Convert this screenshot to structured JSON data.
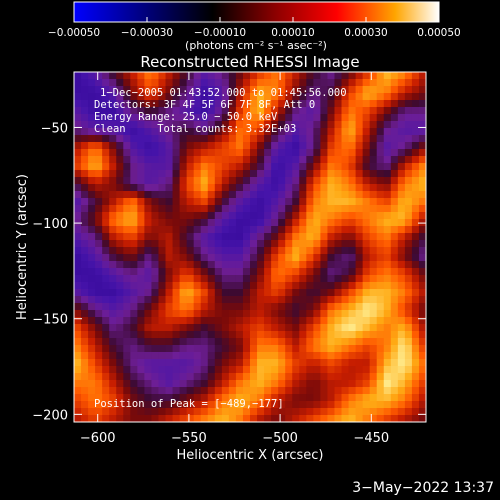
{
  "chart_data": {
    "type": "heatmap",
    "title": "Reconstructed RHESSI Image",
    "xlabel": "Heliocentric X (arcsec)",
    "ylabel": "Heliocentric Y (arcsec)",
    "xlim": [
      -613,
      -420
    ],
    "ylim": [
      -204,
      -21
    ],
    "xticks": [
      -600,
      -550,
      -500,
      -450
    ],
    "yticks": [
      -50,
      -100,
      -150,
      -200
    ],
    "xtick_labels": [
      "−600",
      "−550",
      "−500",
      "−450"
    ],
    "ytick_labels": [
      "−50",
      "−100",
      "−150",
      "−200"
    ],
    "colorbar": {
      "range": [
        -0.0005,
        0.0005
      ],
      "ticks": [
        -0.0005,
        -0.0003,
        -0.0001,
        0.0001,
        0.0003,
        0.0005
      ],
      "tick_labels": [
        "−0.00050",
        "−0.00030",
        "−0.00010",
        "0.00010",
        "0.00030",
        "0.00050"
      ],
      "unit_label": "(photons cm⁻² s⁻¹ asec⁻²)",
      "colors": [
        "#0000ff",
        "#000000",
        "#8b0000",
        "#ff0000",
        "#ffa500",
        "#ffffff"
      ]
    },
    "annotations": [
      "1−Dec−2005 01:43:52.000 to 01:45:56.000",
      "Detectors: 3F 4F 5F 6F 7F 8F, Att 0",
      "Energy Range: 25.0 − 50.0 keV",
      "Clean     Total counts: 3.32E+03",
      "Position of Peak = [−489,−177]"
    ],
    "peak": {
      "x": -489,
      "y": -177
    },
    "intensity_grid": [
      [
        0.1,
        0.2,
        0.4,
        0.6,
        0.8,
        0.6,
        0.4,
        0.2,
        0.3,
        0.5,
        0.7,
        0.8,
        0.6,
        0.4,
        0.3,
        0.5,
        0.7,
        0.9,
        0.8,
        0.6
      ],
      [
        0.1,
        0.1,
        0.2,
        0.5,
        0.7,
        0.5,
        0.3,
        0.1,
        0.2,
        0.6,
        0.9,
        0.8,
        0.5,
        0.3,
        0.4,
        0.7,
        0.9,
        0.8,
        0.6,
        0.5
      ],
      [
        0.2,
        0.1,
        0.1,
        0.3,
        0.4,
        0.3,
        0.2,
        0.1,
        0.3,
        0.7,
        0.9,
        0.6,
        0.3,
        0.2,
        0.5,
        0.8,
        0.7,
        0.5,
        0.3,
        0.3
      ],
      [
        0.3,
        0.2,
        0.2,
        0.1,
        0.2,
        0.3,
        0.4,
        0.3,
        0.5,
        0.8,
        0.7,
        0.4,
        0.2,
        0.3,
        0.6,
        0.9,
        0.6,
        0.3,
        0.2,
        0.2
      ],
      [
        0.6,
        0.8,
        0.5,
        0.2,
        0.1,
        0.2,
        0.5,
        0.6,
        0.7,
        0.8,
        0.5,
        0.2,
        0.1,
        0.3,
        0.7,
        0.8,
        0.5,
        0.2,
        0.3,
        0.5
      ],
      [
        0.7,
        0.9,
        0.6,
        0.3,
        0.2,
        0.2,
        0.6,
        0.8,
        0.7,
        0.6,
        0.4,
        0.1,
        0.2,
        0.5,
        0.8,
        0.7,
        0.4,
        0.3,
        0.6,
        0.8
      ],
      [
        0.4,
        0.6,
        0.5,
        0.3,
        0.2,
        0.3,
        0.7,
        0.9,
        0.6,
        0.4,
        0.2,
        0.1,
        0.3,
        0.7,
        0.9,
        0.8,
        0.6,
        0.5,
        0.8,
        0.9
      ],
      [
        0.2,
        0.4,
        0.6,
        0.8,
        0.5,
        0.4,
        0.6,
        0.7,
        0.4,
        0.2,
        0.1,
        0.2,
        0.4,
        0.8,
        0.9,
        0.9,
        0.8,
        0.7,
        0.9,
        0.8
      ],
      [
        0.3,
        0.5,
        0.8,
        0.9,
        0.6,
        0.5,
        0.5,
        0.4,
        0.2,
        0.1,
        0.1,
        0.3,
        0.6,
        0.9,
        0.8,
        0.7,
        0.8,
        0.9,
        0.9,
        0.6
      ],
      [
        0.2,
        0.3,
        0.6,
        0.7,
        0.5,
        0.6,
        0.4,
        0.2,
        0.1,
        0.1,
        0.3,
        0.5,
        0.8,
        0.9,
        0.6,
        0.5,
        0.7,
        0.8,
        0.6,
        0.4
      ],
      [
        0.1,
        0.2,
        0.4,
        0.5,
        0.3,
        0.6,
        0.5,
        0.3,
        0.2,
        0.2,
        0.4,
        0.7,
        0.9,
        0.7,
        0.4,
        0.3,
        0.6,
        0.7,
        0.5,
        0.3
      ],
      [
        0.1,
        0.1,
        0.2,
        0.3,
        0.2,
        0.5,
        0.7,
        0.5,
        0.3,
        0.3,
        0.5,
        0.8,
        0.7,
        0.5,
        0.3,
        0.4,
        0.7,
        0.8,
        0.7,
        0.5
      ],
      [
        0.2,
        0.1,
        0.1,
        0.2,
        0.3,
        0.6,
        0.9,
        0.7,
        0.4,
        0.4,
        0.6,
        0.7,
        0.5,
        0.4,
        0.5,
        0.7,
        0.9,
        0.9,
        0.8,
        0.6
      ],
      [
        0.5,
        0.3,
        0.2,
        0.3,
        0.5,
        0.7,
        0.8,
        0.6,
        0.5,
        0.5,
        0.6,
        0.5,
        0.4,
        0.5,
        0.8,
        0.9,
        1.0,
        0.9,
        0.7,
        0.5
      ],
      [
        0.7,
        0.5,
        0.3,
        0.4,
        0.6,
        0.6,
        0.5,
        0.4,
        0.5,
        0.6,
        0.7,
        0.6,
        0.5,
        0.7,
        0.9,
        1.0,
        0.9,
        0.8,
        0.9,
        0.6
      ],
      [
        0.8,
        0.6,
        0.4,
        0.3,
        0.4,
        0.4,
        0.3,
        0.3,
        0.4,
        0.5,
        0.8,
        0.8,
        0.6,
        0.8,
        0.9,
        0.8,
        0.7,
        0.8,
        1.0,
        0.7
      ],
      [
        0.9,
        0.7,
        0.5,
        0.3,
        0.2,
        0.2,
        0.2,
        0.3,
        0.5,
        0.6,
        0.9,
        0.9,
        0.7,
        0.6,
        0.7,
        0.6,
        0.6,
        0.9,
        1.0,
        0.8
      ],
      [
        0.8,
        0.8,
        0.6,
        0.4,
        0.3,
        0.2,
        0.3,
        0.4,
        0.6,
        0.8,
        0.9,
        0.8,
        0.6,
        0.5,
        0.6,
        0.6,
        0.7,
        1.0,
        0.9,
        0.7
      ],
      [
        0.7,
        0.8,
        0.7,
        0.5,
        0.4,
        0.4,
        0.5,
        0.6,
        0.8,
        0.9,
        0.8,
        0.6,
        0.5,
        0.5,
        0.6,
        0.8,
        0.9,
        0.9,
        0.8,
        0.6
      ],
      [
        0.6,
        0.7,
        0.6,
        0.5,
        0.5,
        0.6,
        0.7,
        0.8,
        0.9,
        0.8,
        0.6,
        0.5,
        0.6,
        0.7,
        0.8,
        0.9,
        0.8,
        0.7,
        0.6,
        0.5
      ]
    ]
  },
  "footer": {
    "timestamp": "3−May−2022 13:37"
  }
}
